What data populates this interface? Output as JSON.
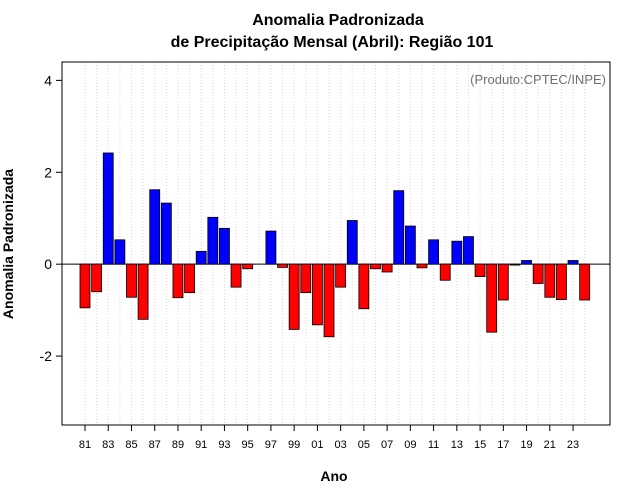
{
  "chart_data": {
    "type": "bar",
    "title_line1": "Anomalia Padronizada",
    "title_line2": "de Precipitação Mensal (Abril): Região 101",
    "xlabel": "Ano",
    "ylabel": "Anomalia Padronizada",
    "annotation": "(Produto:CPTEC/INPE)",
    "ylim": [
      -3.5,
      4.4
    ],
    "yticks": [
      -2,
      0,
      2,
      4
    ],
    "grid": true,
    "colors": {
      "positive": "#0000ff",
      "negative": "#ff0000",
      "grid": "#d8d8d8"
    },
    "years": [
      1981,
      1982,
      1983,
      1984,
      1985,
      1986,
      1987,
      1988,
      1989,
      1990,
      1991,
      1992,
      1993,
      1994,
      1995,
      1996,
      1997,
      1998,
      1999,
      2000,
      2001,
      2002,
      2003,
      2004,
      2005,
      2006,
      2007,
      2008,
      2009,
      2010,
      2011,
      2012,
      2013,
      2014,
      2015,
      2016,
      2017,
      2018,
      2019,
      2020,
      2021,
      2022,
      2023,
      2024
    ],
    "values": [
      -0.95,
      -0.6,
      2.42,
      0.53,
      -0.72,
      -1.2,
      1.62,
      1.33,
      -0.73,
      -0.62,
      0.28,
      1.02,
      0.78,
      -0.5,
      -0.1,
      0.0,
      0.72,
      -0.07,
      -1.42,
      -0.62,
      -1.32,
      -1.58,
      -0.5,
      0.95,
      -0.97,
      -0.1,
      -0.17,
      1.6,
      0.83,
      -0.08,
      0.53,
      -0.35,
      0.5,
      0.6,
      -0.27,
      -1.48,
      -0.78,
      -0.02,
      0.08,
      -0.42,
      -0.72,
      -0.77,
      0.08,
      -0.78
    ],
    "tick_labels": [
      "81",
      "83",
      "85",
      "87",
      "89",
      "91",
      "93",
      "95",
      "97",
      "99",
      "01",
      "03",
      "05",
      "07",
      "09",
      "11",
      "13",
      "15",
      "17",
      "19",
      "21",
      "23"
    ]
  }
}
